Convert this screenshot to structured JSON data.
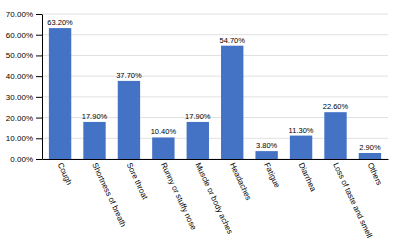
{
  "chart_data": {
    "type": "bar",
    "categories": [
      "Cough",
      "Shortness of breath",
      "Sore throat",
      "Runny or stuffy nose",
      "Muscle or body aches",
      "Headaches",
      "Fatigue",
      "Diarrhea",
      "Loss of taste and smell",
      "Others"
    ],
    "values": [
      63.2,
      17.9,
      37.7,
      10.4,
      17.9,
      54.7,
      3.8,
      11.3,
      22.6,
      2.9
    ],
    "value_labels": [
      "63.20%",
      "17.90%",
      "37.70%",
      "10.40%",
      "17.90%",
      "54.70%",
      "3.80%",
      "11.30%",
      "22.60%",
      "2.90%"
    ],
    "data_labels": true,
    "color": "#4472C4",
    "ylim": [
      0,
      70
    ],
    "yticks": [
      {
        "value": 0,
        "label": "0.00%"
      },
      {
        "value": 10,
        "label": "10.00%"
      },
      {
        "value": 20,
        "label": "20.00%"
      },
      {
        "value": 30,
        "label": "30.00%"
      },
      {
        "value": 40,
        "label": "40.00%"
      },
      {
        "value": 50,
        "label": "50.00%"
      },
      {
        "value": 60,
        "label": "60.00%"
      },
      {
        "value": 70,
        "label": "70.00%"
      }
    ],
    "grid": true
  }
}
